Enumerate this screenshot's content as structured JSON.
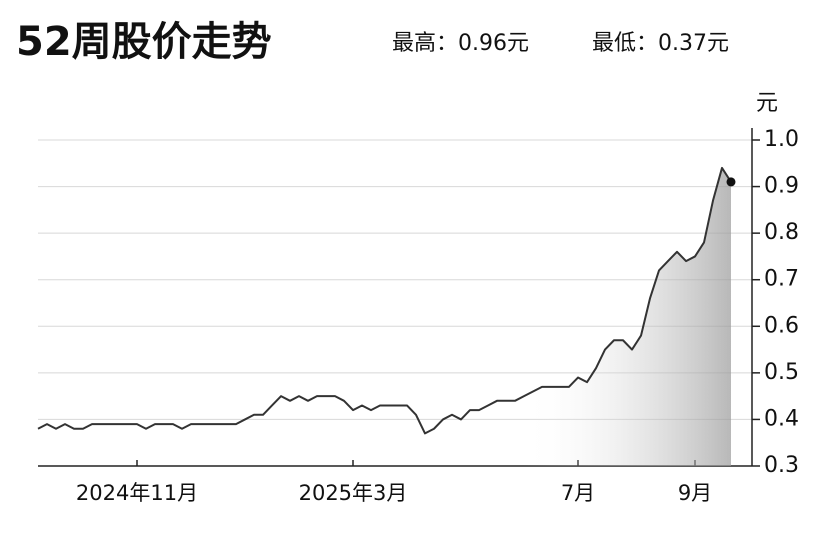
{
  "chart_data": {
    "type": "line",
    "title": "52周股价走势",
    "high_label": "最高：0.96元",
    "low_label": "最低：0.37元",
    "y_unit": "元",
    "categories": [
      null,
      null,
      null,
      null,
      null,
      null,
      null,
      null,
      null,
      null,
      null,
      "2024年11月",
      null,
      null,
      null,
      null,
      null,
      null,
      null,
      null,
      null,
      null,
      null,
      null,
      null,
      null,
      null,
      null,
      null,
      null,
      null,
      null,
      null,
      null,
      null,
      "2025年3月",
      null,
      null,
      null,
      null,
      null,
      null,
      null,
      null,
      null,
      null,
      null,
      null,
      null,
      null,
      null,
      null,
      null,
      null,
      null,
      null,
      null,
      null,
      null,
      null,
      "7月",
      null,
      null,
      null,
      null,
      null,
      null,
      null,
      null,
      null,
      null,
      null,
      null,
      "9月",
      null,
      null,
      null,
      null
    ],
    "series": [
      {
        "color": "#333333",
        "values": [
          0.38,
          0.39,
          0.38,
          0.39,
          0.38,
          0.38,
          0.39,
          0.39,
          0.39,
          0.39,
          0.39,
          0.39,
          0.38,
          0.39,
          0.39,
          0.39,
          0.38,
          0.39,
          0.39,
          0.39,
          0.39,
          0.39,
          0.39,
          0.4,
          0.41,
          0.41,
          0.43,
          0.45,
          0.44,
          0.45,
          0.44,
          0.45,
          0.45,
          0.45,
          0.44,
          0.42,
          0.43,
          0.42,
          0.43,
          0.43,
          0.43,
          0.43,
          0.41,
          0.37,
          0.38,
          0.4,
          0.41,
          0.4,
          0.42,
          0.42,
          0.43,
          0.44,
          0.44,
          0.44,
          0.45,
          0.46,
          0.47,
          0.47,
          0.47,
          0.47,
          0.49,
          0.48,
          0.51,
          0.55,
          0.57,
          0.57,
          0.55,
          0.58,
          0.66,
          0.72,
          0.74,
          0.76,
          0.74,
          0.75,
          0.78,
          0.87,
          0.94,
          0.91
        ]
      }
    ],
    "ylim": [
      0.3,
      1.0
    ],
    "yticks": [
      0.3,
      0.4,
      0.5,
      0.6,
      0.7,
      0.8,
      0.9,
      {
        "value": 1.0,
        "label": "1.0"
      }
    ],
    "grid": true
  }
}
